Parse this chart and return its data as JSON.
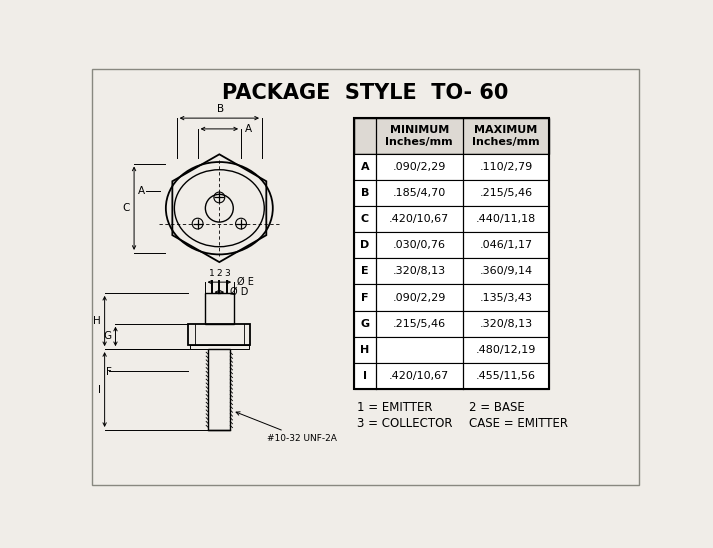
{
  "title": "PACKAGE  STYLE  TO- 60",
  "title_fontsize": 15,
  "title_fontweight": "bold",
  "bg_color": "#f0ede8",
  "table_rows": [
    [
      "A",
      ".090/2,29",
      ".110/2,79"
    ],
    [
      "B",
      ".185/4,70",
      ".215/5,46"
    ],
    [
      "C",
      ".420/10,67",
      ".440/11,18"
    ],
    [
      "D",
      ".030/0,76",
      ".046/1,17"
    ],
    [
      "E",
      ".320/8,13",
      ".360/9,14"
    ],
    [
      "F",
      ".090/2,29",
      ".135/3,43"
    ],
    [
      "G",
      ".215/5,46",
      ".320/8,13"
    ],
    [
      "H",
      "",
      ".480/12,19"
    ],
    [
      "I",
      ".420/10,67",
      ".455/11,56"
    ]
  ],
  "col_headers": [
    "",
    "MINIMUM\nInches/mm",
    "MAXIMUM\nInches/mm"
  ],
  "note1": "1 = EMITTER",
  "note2": "2 = BASE",
  "note3": "3 = COLLECTOR",
  "note4": "CASE = EMITTER",
  "thread_note": "#10-32 UNF-2A"
}
